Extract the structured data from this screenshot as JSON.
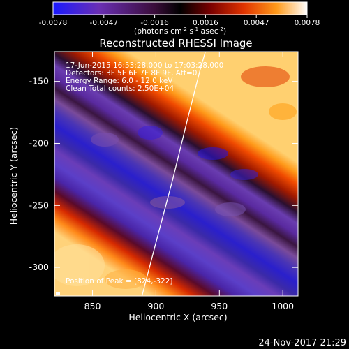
{
  "chart_data": {
    "type": "heatmap",
    "title": "Reconstructed RHESSI Image",
    "xlabel": "Heliocentric X (arcsec)",
    "ylabel": "Heliocentric Y (arcsec)",
    "xlim": [
      820,
      1012
    ],
    "ylim": [
      -323,
      -126
    ],
    "xticks": [
      850,
      900,
      950,
      1000
    ],
    "yticks": [
      -150,
      -200,
      -250,
      -300
    ],
    "colorbar": {
      "ticks": [
        "-0.0078",
        "-0.0047",
        "-0.0016",
        "0.0016",
        "0.0047",
        "0.0078"
      ],
      "label_html": "(photons cm<tspan dy='-4' font-size='7'>-2</tspan><tspan dy='4'> s</tspan><tspan dy='-4' font-size='7'>-1</tspan><tspan dy='4'> asec</tspan><tspan dy='-4' font-size='7'>-2</tspan><tspan dy='4'>)</tspan>",
      "colors": [
        "#1a1aff",
        "#6a2fb4",
        "#3a0d3a",
        "#000000",
        "#7a0000",
        "#e03300",
        "#ff9a1a",
        "#ffffff"
      ]
    },
    "annotations": [
      "17-Jun-2015 16:53:28.000 to 17:03:28.000",
      "Detectors: 3F 5F 6F 7F 8F 9F, Att=0",
      "Energy Range: 6.0 - 12.0 keV",
      "Clean     Total counts: 2.50E+04"
    ],
    "peak_label": "Position of Peak = [824,-322]",
    "limb_curve": [
      [
        889,
        -323
      ],
      [
        900,
        -280
      ],
      [
        913,
        -230
      ],
      [
        925,
        -180
      ],
      [
        935,
        -140
      ],
      [
        939,
        -126
      ]
    ]
  },
  "footer": {
    "timestamp": "24-Nov-2017 21:29"
  }
}
